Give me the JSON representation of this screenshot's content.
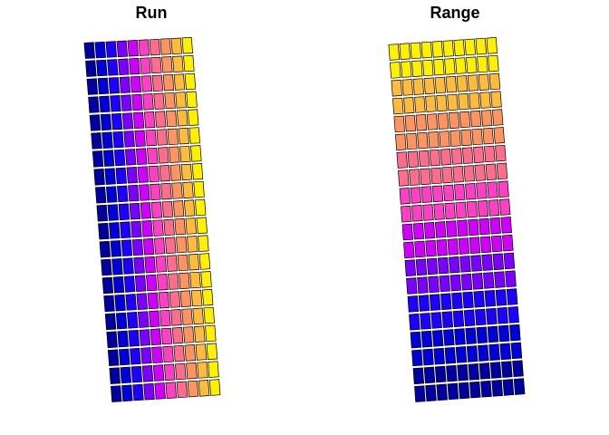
{
  "chart_data": [
    {
      "type": "heatmap",
      "title": "Run",
      "rows": 20,
      "columns": 10,
      "fill_direction": "by-column",
      "palette": [
        "#0000A0",
        "#0000D8",
        "#1E00FF",
        "#7A00FF",
        "#D000FF",
        "#FF3FC4",
        "#FF6D8C",
        "#FF9460",
        "#FFBB3C",
        "#FFF000"
      ]
    },
    {
      "type": "heatmap",
      "title": "Range",
      "rows": 20,
      "columns": 10,
      "fill_direction": "by-row-top-to-bottom-reversed",
      "palette": [
        "#0000A0",
        "#0000D8",
        "#1E00FF",
        "#7A00FF",
        "#D000FF",
        "#FF3FC4",
        "#FF6D8C",
        "#FF9460",
        "#FFBB3C",
        "#FFF000"
      ]
    }
  ]
}
